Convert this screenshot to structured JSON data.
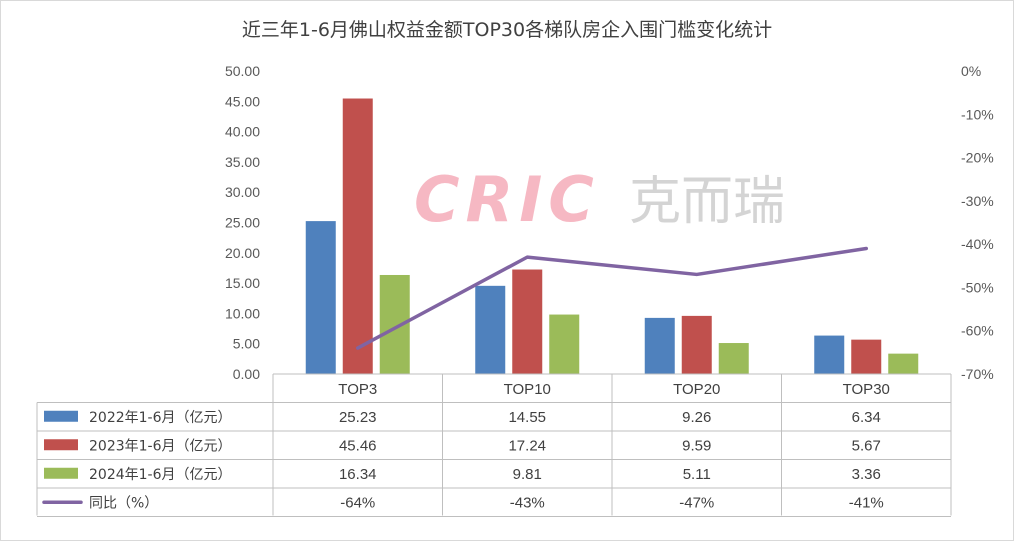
{
  "watermark": {
    "latin": "CRIC",
    "chinese": "克而瑞",
    "colors": {
      "latin": "#f4a6b4",
      "chinese": "#c9c9c9"
    }
  },
  "chart_data": {
    "type": "bar",
    "title": "近三年1-6月佛山权益金额TOP30各梯队房企入围门槛变化统计",
    "categories": [
      "TOP3",
      "TOP10",
      "TOP20",
      "TOP30"
    ],
    "series": [
      {
        "name": "2022年1-6月（亿元）",
        "values": [
          25.23,
          14.55,
          9.26,
          6.34
        ],
        "color": "#4f81bd",
        "kind": "bar",
        "axis": "left"
      },
      {
        "name": "2023年1-6月（亿元）",
        "values": [
          45.46,
          17.24,
          9.59,
          5.67
        ],
        "color": "#c0504d",
        "kind": "bar",
        "axis": "left"
      },
      {
        "name": "2024年1-6月（亿元）",
        "values": [
          16.34,
          9.81,
          5.11,
          3.36
        ],
        "color": "#9bbb59",
        "kind": "bar",
        "axis": "left"
      },
      {
        "name": "同比（%）",
        "values": [
          -64,
          -43,
          -47,
          -41
        ],
        "color": "#8064a2",
        "kind": "line",
        "axis": "right"
      }
    ],
    "y_left": {
      "range": [
        0,
        50
      ],
      "ticks": [
        "0.00",
        "5.00",
        "10.00",
        "15.00",
        "20.00",
        "25.00",
        "30.00",
        "35.00",
        "40.00",
        "45.00",
        "50.00"
      ]
    },
    "y_right": {
      "range": [
        -70,
        0
      ],
      "ticks": [
        "-70%",
        "-60%",
        "-50%",
        "-40%",
        "-30%",
        "-20%",
        "-10%",
        "0%"
      ]
    },
    "table": {
      "rows": [
        [
          "25.23",
          "14.55",
          "9.26",
          "6.34"
        ],
        [
          "45.46",
          "17.24",
          "9.59",
          "5.67"
        ],
        [
          "16.34",
          "9.81",
          "5.11",
          "3.36"
        ],
        [
          "-64%",
          "-43%",
          "-47%",
          "-41%"
        ]
      ]
    },
    "grid": false,
    "legend": "data-table"
  }
}
